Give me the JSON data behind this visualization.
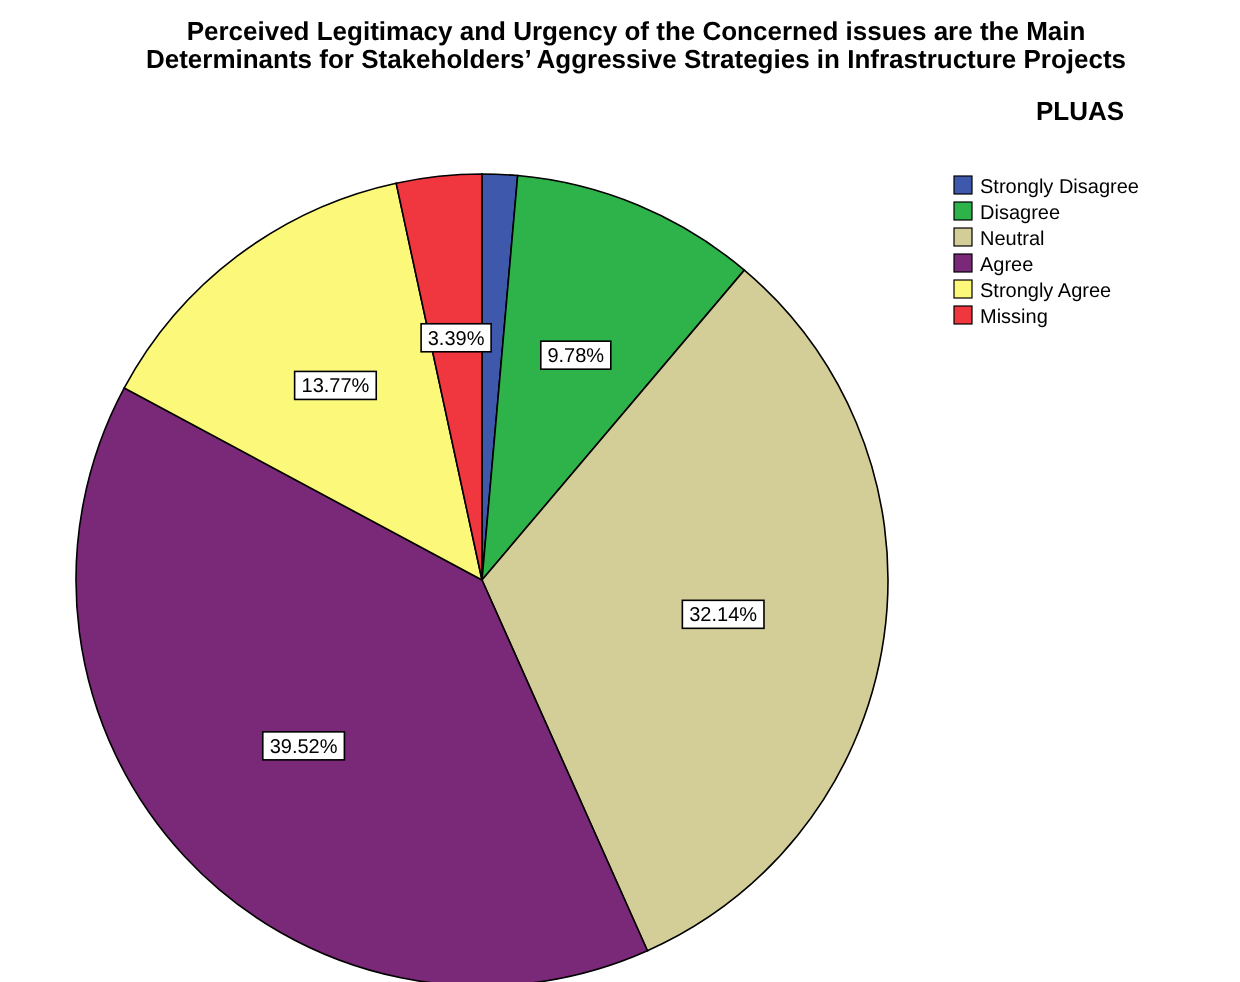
{
  "chart_data": {
    "type": "pie",
    "title": "Perceived Legitimacy and Urgency of the Concerned issues are the Main Determinants for Stakeholders’ Aggressive Strategies in Infrastructure Projects",
    "subtitle": "PLUAS",
    "categories": [
      "Strongly Disagree",
      "Disagree",
      "Neutral",
      "Agree",
      "Strongly Agree",
      "Missing"
    ],
    "values": [
      1.4,
      9.78,
      32.14,
      39.52,
      13.77,
      3.39
    ],
    "value_labels": [
      null,
      "9.78%",
      "32.14%",
      "39.52%",
      "13.77%",
      "3.39%"
    ],
    "colors": [
      "#3e58ac",
      "#2db34a",
      "#d3ce97",
      "#7a2878",
      "#fbf87a",
      "#f0363f"
    ],
    "legend": "top right"
  }
}
